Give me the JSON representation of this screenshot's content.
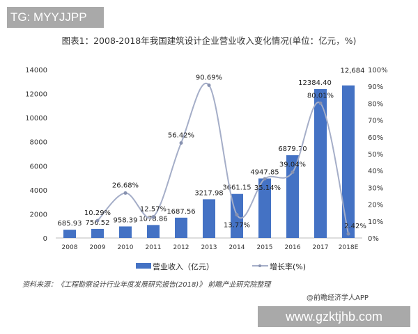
{
  "watermark_top": "TG: MYYJJPP",
  "watermark_bottom": "www.gzktjhb.com",
  "source": "资料来源：《工程勘察设计行业年度发展研究报告(2018)》 前瞻产业研究院整理",
  "credit": "@前瞻经济学人APP",
  "chart_data": {
    "type": "bar+line",
    "title": "图表1：2008-2018年我国建筑设计企业营业收入变化情况(单位：亿元，%)",
    "categories": [
      "2008",
      "2009",
      "2010",
      "2011",
      "2012",
      "2013",
      "2014",
      "2015",
      "2016",
      "2017",
      "2018E"
    ],
    "series": [
      {
        "name": "营业收入（亿元）",
        "type": "bar",
        "axis": "left",
        "color": "#4472c4",
        "values": [
          685.93,
          756.52,
          958.39,
          1078.86,
          1687.56,
          3217.98,
          3661.15,
          4947.85,
          6879.7,
          12384.4,
          12684
        ],
        "labels": [
          "685.93",
          "756.52",
          "958.39",
          "1078.86",
          "1687.56",
          "3217.98",
          "3661.15",
          "4947.85",
          "6879.70",
          "12384.40",
          "12,684"
        ]
      },
      {
        "name": "增长率(%)",
        "type": "line",
        "axis": "right",
        "color": "#a5aec8",
        "values": [
          null,
          10.29,
          26.68,
          12.57,
          56.42,
          90.69,
          13.77,
          35.14,
          39.04,
          80.01,
          2.42
        ],
        "labels": [
          "",
          "10.29%",
          "26.68%",
          "12.57%",
          "56.42%",
          "90.69%",
          "13.77%",
          "35.14%",
          "39.04%",
          "80.01%",
          "2.42%"
        ]
      }
    ],
    "yleft": {
      "range": [
        0,
        14000
      ],
      "ticks": [
        "0",
        "2000",
        "4000",
        "6000",
        "8000",
        "10000",
        "12000",
        "14000"
      ]
    },
    "yright": {
      "range": [
        0,
        100
      ],
      "ticks": [
        "0%",
        "10%",
        "20%",
        "30%",
        "40%",
        "50%",
        "60%",
        "70%",
        "80%",
        "90%",
        "100%"
      ]
    },
    "legend": "bottom",
    "grid": false
  }
}
